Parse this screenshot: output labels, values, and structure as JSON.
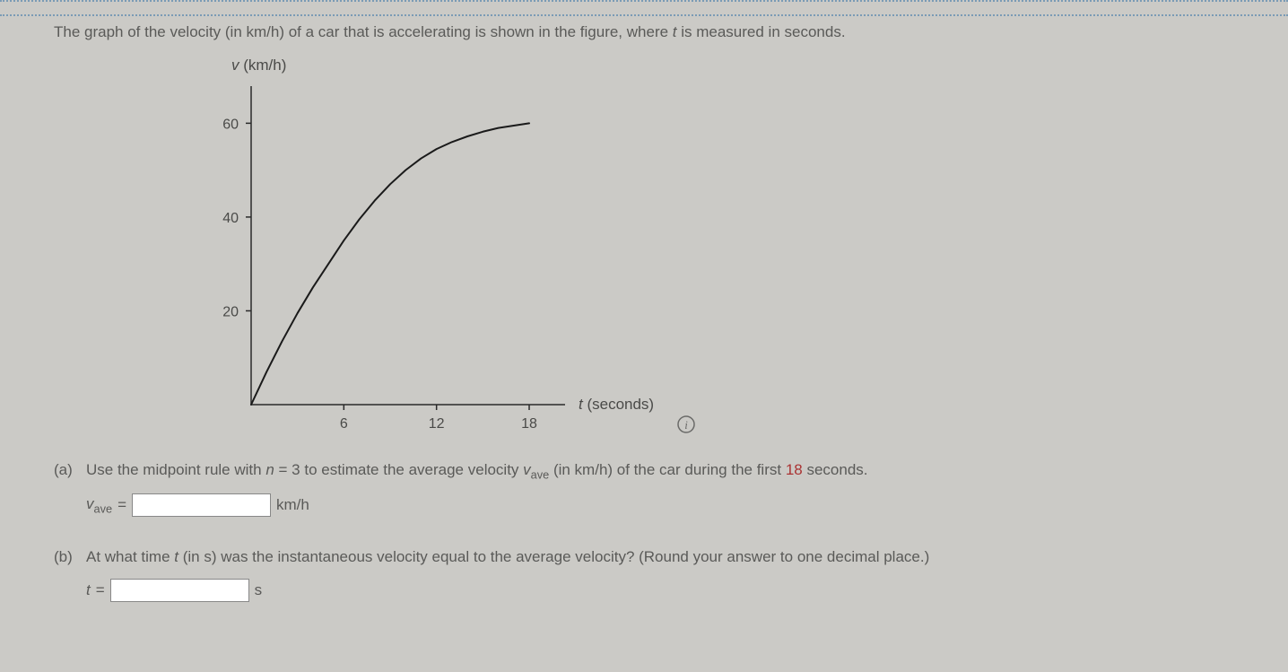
{
  "question_text": {
    "prefix": "The graph of the velocity (in km/h) of a car that is accelerating is shown in the figure, where ",
    "t": "t",
    "suffix": " is measured in seconds."
  },
  "chart": {
    "type": "line",
    "y_label": "v  (km/h)",
    "x_label": "t  (seconds)",
    "y_ticks": [
      20,
      40,
      60
    ],
    "x_ticks": [
      6,
      12,
      18
    ],
    "xlim": [
      0,
      18
    ],
    "ylim": [
      0,
      66
    ],
    "curve_color": "#1a1a1a",
    "curve_width": 2,
    "axis_color": "#2a2a2a",
    "axis_width": 1.5,
    "tick_color": "#2a2a2a",
    "label_color": "#4a4a48",
    "tick_fontsize": 16,
    "label_fontsize": 17,
    "background_color": "#cbcac6",
    "curve_points": [
      [
        0,
        0
      ],
      [
        1,
        7
      ],
      [
        2,
        13.5
      ],
      [
        3,
        19.5
      ],
      [
        4,
        25
      ],
      [
        5,
        30
      ],
      [
        6,
        35
      ],
      [
        7,
        39.5
      ],
      [
        8,
        43.5
      ],
      [
        9,
        47
      ],
      [
        10,
        50
      ],
      [
        11,
        52.5
      ],
      [
        12,
        54.5
      ],
      [
        13,
        56
      ],
      [
        14,
        57.2
      ],
      [
        15,
        58.2
      ],
      [
        16,
        59
      ],
      [
        17,
        59.5
      ],
      [
        18,
        60
      ]
    ]
  },
  "part_a": {
    "label": "(a)",
    "text_prefix": "Use the midpoint rule with ",
    "n_var": "n",
    "eq": " = 3 to estimate the average velocity ",
    "v": "v",
    "sub": "ave",
    "text_suffix1": " (in km/h) of the car during the first ",
    "red_num": "18",
    "text_suffix2": " seconds.",
    "answer_var": "v",
    "answer_sub": "ave",
    "equals": " = ",
    "unit": "km/h",
    "value": ""
  },
  "part_b": {
    "label": "(b)",
    "text_prefix": "At what time ",
    "t": "t",
    "text_mid": " (in s) was the instantaneous velocity equal to the average velocity? (Round your answer to one decimal place.)",
    "answer_var": "t",
    "equals": " = ",
    "unit": "s",
    "value": ""
  },
  "info_icon_label": "i"
}
